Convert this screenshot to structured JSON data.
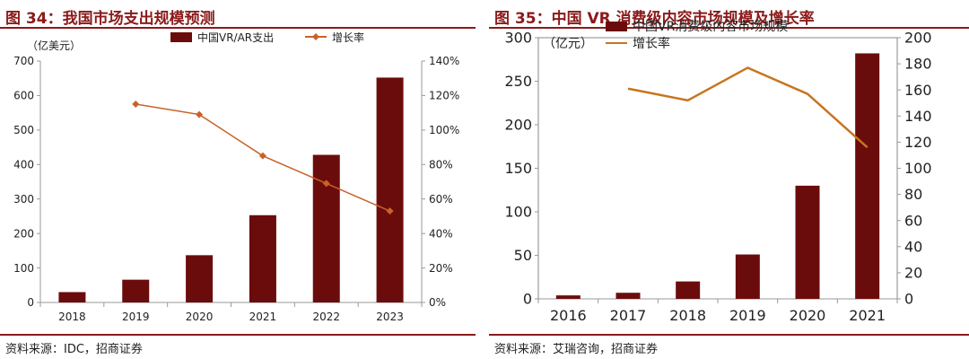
{
  "chart_data": [
    {
      "type": "bar",
      "title": "图 34：我国市场支出规模预测",
      "source": "资料来源：IDC，招商证券",
      "unit_label": "（亿美元）",
      "categories": [
        "2018",
        "2019",
        "2020",
        "2021",
        "2022",
        "2023"
      ],
      "series": [
        {
          "name": "中国VR/AR支出",
          "kind": "bar",
          "axis": "left",
          "color": "#6b0c0c",
          "values": [
            30,
            66,
            137,
            253,
            428,
            652
          ]
        },
        {
          "name": "增长率",
          "kind": "line",
          "axis": "right",
          "color": "#c8622a",
          "marker": "diamond",
          "values": [
            null,
            115,
            109,
            85,
            69,
            53
          ]
        }
      ],
      "ylim": [
        0,
        700
      ],
      "yticks": [
        "0",
        "100",
        "200",
        "300",
        "400",
        "500",
        "600",
        "700"
      ],
      "y2lim": [
        0,
        140
      ],
      "y2ticks": [
        "0%",
        "20%",
        "40%",
        "60%",
        "80%",
        "100%",
        "120%",
        "140%"
      ],
      "legend_position": "top"
    },
    {
      "type": "bar",
      "title": "图 35：中国 VR 消费级内容市场规模及增长率",
      "source": "资料来源：艾瑞咨询，招商证券",
      "unit_label": "（亿元）",
      "categories": [
        "2016",
        "2017",
        "2018",
        "2019",
        "2020",
        "2021"
      ],
      "series": [
        {
          "name": "中国VR消费级内容市场规模",
          "kind": "bar",
          "axis": "left",
          "color": "#6b0c0c",
          "values": [
            4,
            7,
            20,
            51,
            130,
            282
          ]
        },
        {
          "name": "增长率",
          "kind": "line",
          "axis": "right",
          "color": "#c8741f",
          "marker": "none",
          "values": [
            null,
            161,
            152,
            177,
            157,
            116
          ]
        }
      ],
      "ylim": [
        0,
        300
      ],
      "yticks": [
        "0",
        "50",
        "100",
        "150",
        "200",
        "250",
        "300"
      ],
      "y2lim": [
        0,
        200
      ],
      "y2ticks": [
        "0",
        "20",
        "40",
        "60",
        "80",
        "100",
        "120",
        "140",
        "160",
        "180",
        "200"
      ],
      "legend_position": "top"
    }
  ]
}
